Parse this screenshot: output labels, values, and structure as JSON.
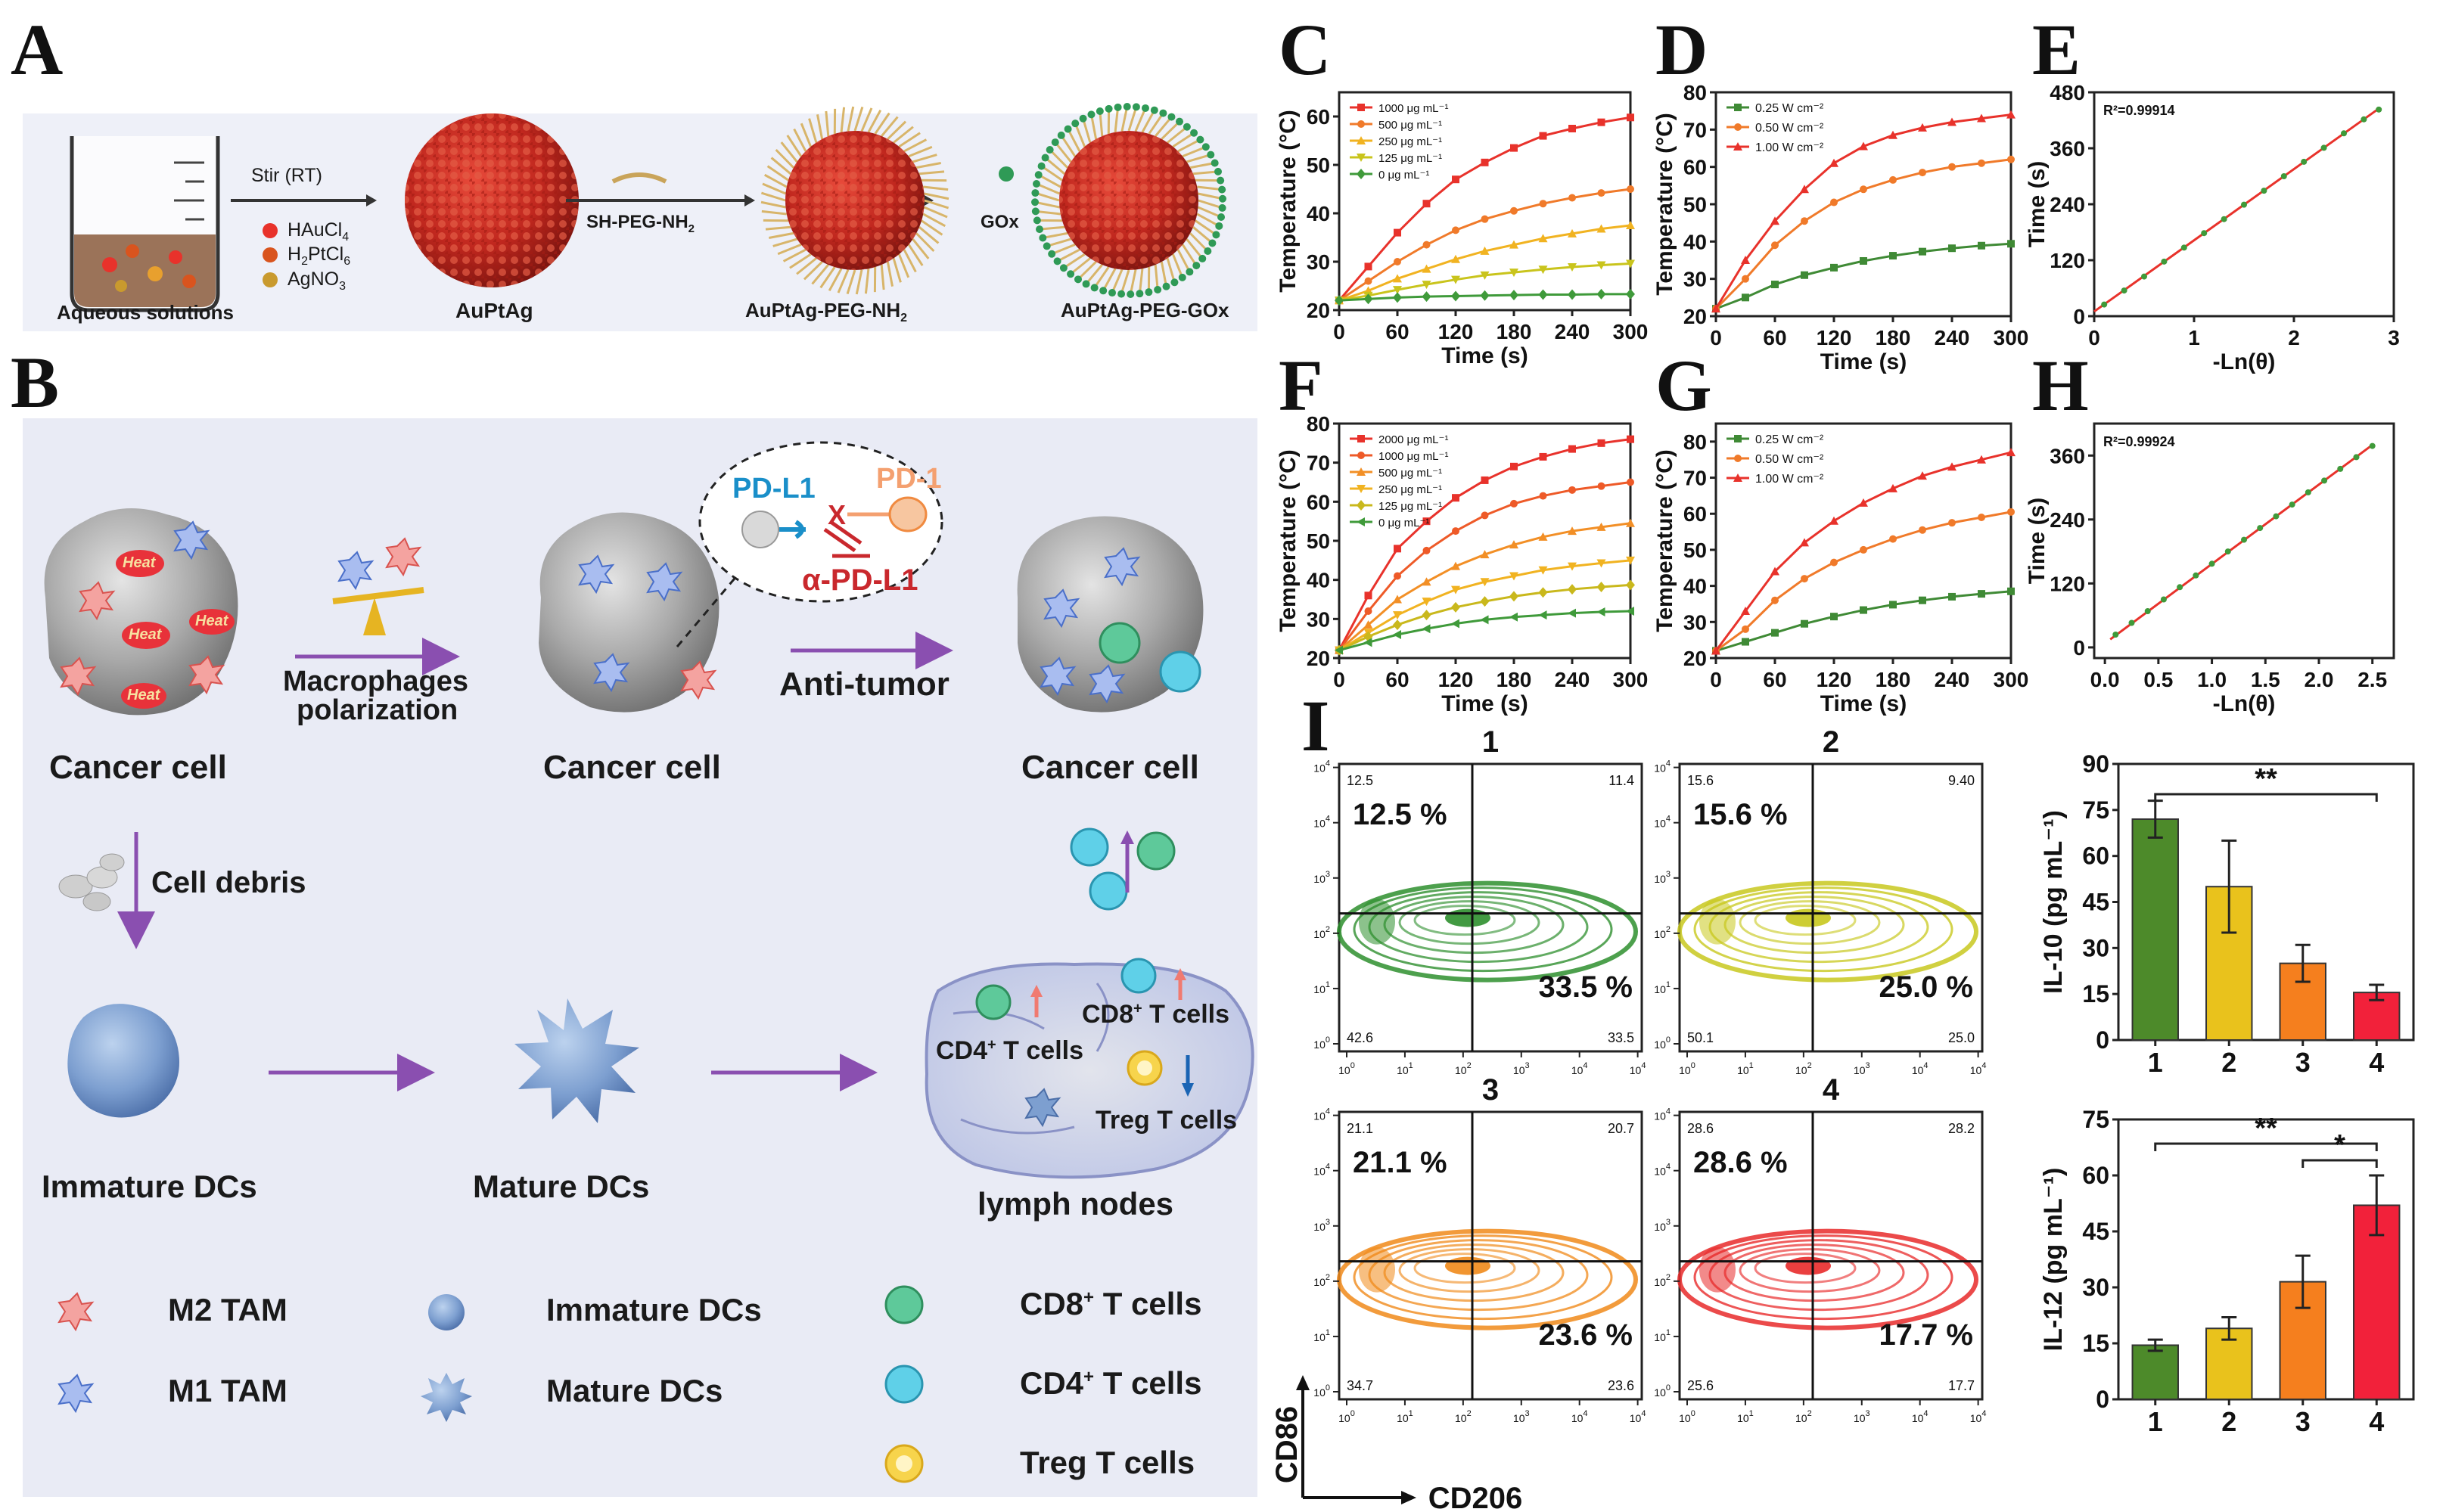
{
  "panel_letters": {
    "A": "A",
    "B": "B",
    "C": "C",
    "D": "D",
    "E": "E",
    "F": "F",
    "G": "G",
    "H": "H",
    "I": "I"
  },
  "panelA": {
    "stir": "Stir (RT)",
    "legend": [
      {
        "text": "HAuCl",
        "sub": "4",
        "color": "#e8322b"
      },
      {
        "text": "H",
        "sub": "2",
        "text2": "PtCl",
        "sub2": "6",
        "color": "#d9541e"
      },
      {
        "text": "AgNO",
        "sub": "3",
        "color": "#c99a2e"
      }
    ],
    "aqueous": "Aqueous solutions",
    "auptag": "AuPtAg",
    "shpeg": "SH-PEG-NH",
    "shpeg_sub": "2",
    "auptag_peg": "AuPtAg-PEG-NH",
    "auptag_peg_sub": "2",
    "gox": "GOx",
    "auptag_gox": "AuPtAg-PEG-GOx"
  },
  "panelB": {
    "cancer1": "Cancer cell",
    "cancer2": "Cancer cell",
    "cancer3": "Cancer cell",
    "macro1": "Macrophages",
    "macro2": "polarization",
    "antitumor": "Anti-tumor",
    "pdl1": "PD-L1",
    "pd1": "PD-1",
    "apdl1": "α-PD-L1",
    "x": "X",
    "heat": "Heat",
    "debris": "Cell debris",
    "immature": "Immature DCs",
    "mature": "Mature DCs",
    "lymph": "lymph nodes",
    "cd4": "CD4",
    "cd8": "CD8",
    "plus": "+",
    "tcells": " T cells",
    "treg": "Treg T cells",
    "legend": {
      "m2": "M2 TAM",
      "m1": "M1 TAM",
      "imm": "Immature DCs",
      "mat": "Mature DCs",
      "cd8": "CD8",
      "cd4": "CD4",
      "treg": "Treg T cells"
    }
  },
  "chart_data": [
    {
      "id": "C",
      "type": "line",
      "xlabel": "Time (s)",
      "ylabel": "Temperature (°C)",
      "xlim": [
        0,
        300
      ],
      "ylim": [
        20,
        65
      ],
      "xticks": [
        0,
        60,
        120,
        180,
        240,
        300
      ],
      "yticks": [
        20,
        30,
        40,
        50,
        60
      ],
      "x": [
        0,
        30,
        60,
        90,
        120,
        150,
        180,
        210,
        240,
        270,
        300
      ],
      "series": [
        {
          "name": "1000 μg mL⁻¹",
          "color": "#e8322b",
          "marker": "square",
          "values": [
            22,
            29,
            36,
            42,
            47,
            50.5,
            53.5,
            56,
            57.5,
            58.8,
            59.8
          ]
        },
        {
          "name": "500 μg mL⁻¹",
          "color": "#f07a2a",
          "marker": "circle",
          "values": [
            22,
            26,
            30,
            33.5,
            36.5,
            38.8,
            40.5,
            42,
            43.2,
            44.2,
            45
          ]
        },
        {
          "name": "250 μg mL⁻¹",
          "color": "#f1b321",
          "marker": "up",
          "values": [
            22,
            24,
            26.5,
            28.5,
            30.5,
            32.2,
            33.5,
            34.8,
            35.8,
            36.8,
            37.5
          ]
        },
        {
          "name": "125 μg mL⁻¹",
          "color": "#c9c41c",
          "marker": "down",
          "values": [
            22,
            23,
            24.2,
            25.3,
            26.3,
            27.2,
            27.8,
            28.4,
            28.9,
            29.3,
            29.6
          ]
        },
        {
          "name": "0 μg mL⁻¹",
          "color": "#3f9a3a",
          "marker": "diamond",
          "values": [
            22,
            22.3,
            22.6,
            22.8,
            22.9,
            23,
            23.1,
            23.2,
            23.2,
            23.3,
            23.3
          ]
        }
      ]
    },
    {
      "id": "D",
      "type": "line",
      "xlabel": "Time (s)",
      "ylabel": "Temperature (°C)",
      "xlim": [
        0,
        300
      ],
      "ylim": [
        20,
        80
      ],
      "xticks": [
        0,
        60,
        120,
        180,
        240,
        300
      ],
      "yticks": [
        20,
        30,
        40,
        50,
        60,
        70,
        80
      ],
      "x": [
        0,
        30,
        60,
        90,
        120,
        150,
        180,
        210,
        240,
        270,
        300
      ],
      "series": [
        {
          "name": "0.25 W cm⁻²",
          "color": "#3f8a35",
          "marker": "square",
          "values": [
            22,
            25,
            28.5,
            31,
            33,
            34.8,
            36.2,
            37.3,
            38.2,
            38.9,
            39.4
          ]
        },
        {
          "name": "0.50 W cm⁻²",
          "color": "#f07a2a",
          "marker": "circle",
          "values": [
            22,
            30,
            39,
            45.5,
            50.5,
            54,
            56.5,
            58.5,
            60,
            61,
            62
          ]
        },
        {
          "name": "1.00 W cm⁻²",
          "color": "#e8322b",
          "marker": "up",
          "values": [
            22,
            35,
            45.5,
            54,
            61,
            65.5,
            68.5,
            70.5,
            72,
            73,
            74
          ]
        }
      ]
    },
    {
      "id": "E",
      "type": "scatter",
      "xlabel": "-Ln(θ)",
      "ylabel": "Time (s)",
      "xlim": [
        0,
        3
      ],
      "ylim": [
        0,
        480
      ],
      "xticks": [
        0,
        1,
        2,
        3
      ],
      "yticks": [
        0,
        120,
        240,
        360,
        480
      ],
      "annotation": "R²=0.99914",
      "fit": {
        "x": [
          0,
          2.85
        ],
        "y": [
          10,
          445
        ]
      },
      "x": [
        0.1,
        0.3,
        0.5,
        0.7,
        0.9,
        1.1,
        1.3,
        1.5,
        1.7,
        1.9,
        2.1,
        2.3,
        2.5,
        2.7,
        2.85
      ],
      "values": [
        25,
        55,
        85,
        117,
        147,
        178,
        208,
        239,
        269,
        300,
        331,
        361,
        392,
        422,
        443
      ]
    },
    {
      "id": "F",
      "type": "line",
      "xlabel": "Time (s)",
      "ylabel": "Temperature (°C)",
      "xlim": [
        0,
        300
      ],
      "ylim": [
        20,
        80
      ],
      "xticks": [
        0,
        60,
        120,
        180,
        240,
        300
      ],
      "yticks": [
        20,
        30,
        40,
        50,
        60,
        70,
        80
      ],
      "x": [
        0,
        30,
        60,
        90,
        120,
        150,
        180,
        210,
        240,
        270,
        300
      ],
      "series": [
        {
          "name": "2000 μg mL⁻¹",
          "color": "#e8322b",
          "marker": "square",
          "values": [
            22,
            36,
            48,
            55,
            61,
            65.5,
            69,
            71.5,
            73.5,
            75,
            76
          ]
        },
        {
          "name": "1000 μg mL⁻¹",
          "color": "#ee5a28",
          "marker": "circle",
          "values": [
            22,
            32,
            41,
            47.5,
            52.5,
            56.5,
            59.5,
            61.5,
            63,
            64,
            65
          ]
        },
        {
          "name": "500 μg mL⁻¹",
          "color": "#f28f26",
          "marker": "up",
          "values": [
            22,
            28.5,
            35,
            39.5,
            43.5,
            46.5,
            49,
            51,
            52.5,
            53.5,
            54.5
          ]
        },
        {
          "name": "250 μg mL⁻¹",
          "color": "#f1b321",
          "marker": "down",
          "values": [
            22,
            26.5,
            31,
            34.5,
            37.5,
            39.5,
            41,
            42.5,
            43.5,
            44.3,
            45
          ]
        },
        {
          "name": "125 μg mL⁻¹",
          "color": "#c9b81c",
          "marker": "diamond",
          "values": [
            22,
            25.5,
            28.5,
            31,
            33,
            34.5,
            35.8,
            36.8,
            37.6,
            38.2,
            38.7
          ]
        },
        {
          "name": "0 μg mL⁻¹",
          "color": "#3f9a3a",
          "marker": "left",
          "values": [
            22,
            24,
            26,
            27.5,
            28.8,
            29.8,
            30.5,
            31,
            31.5,
            31.8,
            32
          ]
        }
      ]
    },
    {
      "id": "G",
      "type": "line",
      "xlabel": "Time (s)",
      "ylabel": "Temperature (°C)",
      "xlim": [
        0,
        300
      ],
      "ylim": [
        20,
        85
      ],
      "xticks": [
        0,
        60,
        120,
        180,
        240,
        300
      ],
      "yticks": [
        20,
        30,
        40,
        50,
        60,
        70,
        80
      ],
      "x": [
        0,
        30,
        60,
        90,
        120,
        150,
        180,
        210,
        240,
        270,
        300
      ],
      "series": [
        {
          "name": "0.25 W cm⁻²",
          "color": "#3f8a35",
          "marker": "square",
          "values": [
            22,
            24.5,
            27,
            29.5,
            31.5,
            33.3,
            34.8,
            36,
            37,
            37.8,
            38.5
          ]
        },
        {
          "name": "0.50 W cm⁻²",
          "color": "#f07a2a",
          "marker": "circle",
          "values": [
            22,
            28,
            36,
            42,
            46.5,
            50,
            53,
            55.5,
            57.5,
            59,
            60.5
          ]
        },
        {
          "name": "1.00 W cm⁻²",
          "color": "#e8322b",
          "marker": "up",
          "values": [
            22,
            33,
            44,
            52,
            58,
            63,
            67,
            70.5,
            73,
            75,
            77
          ]
        }
      ]
    },
    {
      "id": "H",
      "type": "scatter",
      "xlabel": "-Ln(θ)",
      "ylabel": "Time (s)",
      "xlim": [
        -0.1,
        2.7
      ],
      "ylim": [
        -20,
        420
      ],
      "xticks": [
        0,
        0.5,
        1,
        1.5,
        2,
        2.5
      ],
      "xticklabels": [
        "0.0",
        "0.5",
        "1.0",
        "1.5",
        "2.0",
        "2.5"
      ],
      "yticks": [
        0,
        120,
        240,
        360
      ],
      "annotation": "R²=0.99924",
      "fit": {
        "x": [
          0.05,
          2.5
        ],
        "y": [
          15,
          380
        ]
      },
      "x": [
        0.1,
        0.25,
        0.4,
        0.55,
        0.7,
        0.85,
        1.0,
        1.15,
        1.3,
        1.45,
        1.6,
        1.75,
        1.9,
        2.05,
        2.2,
        2.35,
        2.5
      ],
      "values": [
        24,
        46,
        68,
        90,
        113,
        135,
        157,
        180,
        202,
        224,
        246,
        268,
        291,
        313,
        335,
        357,
        378
      ]
    },
    {
      "id": "I-bar1",
      "type": "bar",
      "ylabel": "IL-10 (pg mL⁻¹)",
      "categories": [
        "1",
        "2",
        "3",
        "4"
      ],
      "values": [
        72,
        50,
        25,
        15.5
      ],
      "errors": [
        6,
        15,
        6,
        2.5
      ],
      "colors": [
        "#4d8a2a",
        "#e9c21c",
        "#f57f1e",
        "#f2213a"
      ],
      "ylim": [
        0,
        90
      ],
      "yticks": [
        0,
        15,
        30,
        45,
        60,
        75,
        90
      ],
      "significance": [
        {
          "from": 0,
          "to": 3,
          "label": "**"
        }
      ]
    },
    {
      "id": "I-bar2",
      "type": "bar",
      "ylabel": "IL-12 (pg mL⁻¹)",
      "categories": [
        "1",
        "2",
        "3",
        "4"
      ],
      "values": [
        14.5,
        19,
        31.5,
        52
      ],
      "errors": [
        1.5,
        3,
        7,
        8
      ],
      "colors": [
        "#4d8a2a",
        "#e9c21c",
        "#f57f1e",
        "#f2213a"
      ],
      "ylim": [
        0,
        75
      ],
      "yticks": [
        0,
        15,
        30,
        45,
        60,
        75
      ],
      "significance": [
        {
          "from": 0,
          "to": 3,
          "label": "**"
        },
        {
          "from": 2,
          "to": 3,
          "label": "*"
        }
      ]
    }
  ],
  "flow": {
    "xlabel": "CD206",
    "ylabel": "CD86",
    "ticks": [
      "10",
      "0",
      "1",
      "2",
      "3",
      "4",
      "5"
    ],
    "plots": [
      {
        "title": "1",
        "tl_small": "12.5",
        "tl_big": "12.5 %",
        "tr_small": "11.4",
        "br_big": "33.5 %",
        "bl_small": "42.6",
        "br_small": "33.5",
        "color": "#2e8f2e"
      },
      {
        "title": "2",
        "tl_small": "15.6",
        "tl_big": "15.6 %",
        "tr_small": "9.40",
        "br_big": "25.0 %",
        "bl_small": "50.1",
        "br_small": "25.0",
        "color": "#c8c81e"
      },
      {
        "title": "3",
        "tl_small": "21.1",
        "tl_big": "21.1 %",
        "tr_small": "20.7",
        "br_big": "23.6 %",
        "bl_small": "34.7",
        "br_small": "23.6",
        "color": "#f08a1a"
      },
      {
        "title": "4",
        "tl_small": "28.6",
        "tl_big": "28.6 %",
        "tr_small": "28.2",
        "br_big": "17.7 %",
        "bl_small": "25.6",
        "br_small": "17.7",
        "color": "#e82a2a"
      }
    ]
  },
  "colors": {
    "panel_bg": "#ebedf6",
    "purple_arrow": "#8a4fb0",
    "grid_frame": "#222222"
  }
}
